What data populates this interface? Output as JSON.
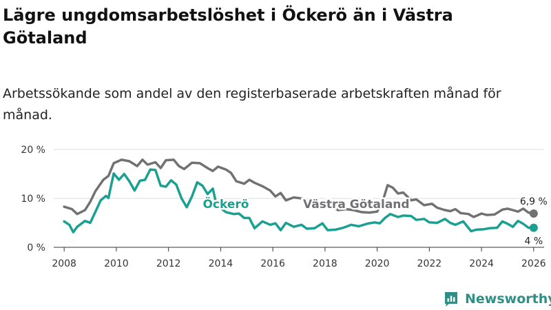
{
  "title": "Lägre ungdomsarbetslöshet i Öckerö än i Västra Götaland",
  "subtitle": "Arbetssökande som andel av den registerbaserade arbetskraften månad för månad.",
  "brand": "Newsworthy",
  "colors": {
    "vg": "#717174",
    "ockero": "#1aa091",
    "grid": "#dddddd",
    "brand": "#2f8f86"
  },
  "chart_data": {
    "type": "line",
    "title": "Lägre ungdomsarbetslöshet i Öckerö än i Västra Götaland",
    "xlim": [
      2007.6,
      2026.4
    ],
    "ylim": [
      0,
      20
    ],
    "yticks": [
      0,
      10,
      20
    ],
    "ytick_labels": [
      "0 %",
      "10 %",
      "20 %"
    ],
    "xticks": [
      2008,
      2010,
      2012,
      2014,
      2016,
      2018,
      2020,
      2022,
      2024,
      2026
    ],
    "xtick_labels": [
      "2008",
      "2010",
      "2012",
      "2014",
      "2016",
      "2018",
      "2020",
      "2022",
      "2024",
      "2026"
    ],
    "series": [
      {
        "name": "Västra Götaland",
        "color": "#717174",
        "end_label": "6,9 %",
        "points": [
          [
            2008.0,
            8.3
          ],
          [
            2008.3,
            7.8
          ],
          [
            2008.5,
            6.8
          ],
          [
            2008.8,
            7.6
          ],
          [
            2009.0,
            9.3
          ],
          [
            2009.2,
            11.5
          ],
          [
            2009.5,
            13.8
          ],
          [
            2009.7,
            14.6
          ],
          [
            2009.9,
            17.2
          ],
          [
            2010.2,
            17.9
          ],
          [
            2010.5,
            17.6
          ],
          [
            2010.8,
            16.6
          ],
          [
            2011.0,
            17.9
          ],
          [
            2011.2,
            16.9
          ],
          [
            2011.5,
            17.4
          ],
          [
            2011.7,
            16.2
          ],
          [
            2011.9,
            17.8
          ],
          [
            2012.2,
            17.9
          ],
          [
            2012.4,
            16.6
          ],
          [
            2012.6,
            16.0
          ],
          [
            2012.9,
            17.3
          ],
          [
            2013.2,
            17.2
          ],
          [
            2013.5,
            16.2
          ],
          [
            2013.7,
            15.6
          ],
          [
            2013.9,
            16.5
          ],
          [
            2014.2,
            15.9
          ],
          [
            2014.4,
            15.2
          ],
          [
            2014.6,
            13.5
          ],
          [
            2014.9,
            13.0
          ],
          [
            2015.1,
            13.8
          ],
          [
            2015.3,
            13.2
          ],
          [
            2015.6,
            12.5
          ],
          [
            2015.9,
            11.6
          ],
          [
            2016.1,
            10.4
          ],
          [
            2016.3,
            11.1
          ],
          [
            2016.5,
            9.6
          ],
          [
            2016.8,
            10.2
          ],
          [
            2017.1,
            10.0
          ],
          [
            2017.3,
            9.5
          ],
          [
            2017.6,
            8.0
          ],
          [
            2017.9,
            8.6
          ],
          [
            2018.2,
            8.5
          ],
          [
            2018.5,
            7.6
          ],
          [
            2018.8,
            7.8
          ],
          [
            2019.1,
            7.6
          ],
          [
            2019.4,
            7.2
          ],
          [
            2019.7,
            7.1
          ],
          [
            2020.0,
            7.3
          ],
          [
            2020.2,
            9.2
          ],
          [
            2020.4,
            12.7
          ],
          [
            2020.6,
            12.2
          ],
          [
            2020.8,
            11.0
          ],
          [
            2021.0,
            11.2
          ],
          [
            2021.3,
            9.6
          ],
          [
            2021.5,
            9.8
          ],
          [
            2021.8,
            8.6
          ],
          [
            2022.1,
            8.9
          ],
          [
            2022.3,
            8.1
          ],
          [
            2022.6,
            7.6
          ],
          [
            2022.8,
            7.4
          ],
          [
            2023.0,
            7.8
          ],
          [
            2023.2,
            7.0
          ],
          [
            2023.5,
            6.8
          ],
          [
            2023.7,
            6.2
          ],
          [
            2024.0,
            6.9
          ],
          [
            2024.2,
            6.6
          ],
          [
            2024.5,
            6.7
          ],
          [
            2024.8,
            7.7
          ],
          [
            2025.0,
            7.9
          ],
          [
            2025.2,
            7.6
          ],
          [
            2025.4,
            7.3
          ],
          [
            2025.6,
            7.9
          ],
          [
            2025.8,
            7.1
          ],
          [
            2026.0,
            6.9
          ]
        ]
      },
      {
        "name": "Öckerö",
        "color": "#1aa091",
        "end_label": "4 %",
        "points": [
          [
            2008.0,
            5.3
          ],
          [
            2008.2,
            4.6
          ],
          [
            2008.35,
            3.1
          ],
          [
            2008.5,
            4.2
          ],
          [
            2008.8,
            5.4
          ],
          [
            2009.0,
            5.0
          ],
          [
            2009.2,
            7.3
          ],
          [
            2009.4,
            9.6
          ],
          [
            2009.6,
            10.5
          ],
          [
            2009.7,
            10.1
          ],
          [
            2009.9,
            15.1
          ],
          [
            2010.1,
            13.8
          ],
          [
            2010.3,
            15.0
          ],
          [
            2010.5,
            13.5
          ],
          [
            2010.7,
            11.6
          ],
          [
            2010.9,
            13.6
          ],
          [
            2011.1,
            13.8
          ],
          [
            2011.3,
            15.9
          ],
          [
            2011.5,
            15.8
          ],
          [
            2011.7,
            12.6
          ],
          [
            2011.9,
            12.4
          ],
          [
            2012.1,
            13.7
          ],
          [
            2012.3,
            12.8
          ],
          [
            2012.5,
            10.0
          ],
          [
            2012.7,
            8.2
          ],
          [
            2012.9,
            10.4
          ],
          [
            2013.1,
            13.3
          ],
          [
            2013.3,
            12.6
          ],
          [
            2013.5,
            10.9
          ],
          [
            2013.7,
            12.0
          ],
          [
            2013.85,
            8.4
          ],
          [
            2014.0,
            8.0
          ],
          [
            2014.2,
            7.2
          ],
          [
            2014.5,
            6.8
          ],
          [
            2014.7,
            6.9
          ],
          [
            2014.9,
            6.0
          ],
          [
            2015.1,
            6.0
          ],
          [
            2015.3,
            3.9
          ],
          [
            2015.6,
            5.3
          ],
          [
            2015.9,
            4.6
          ],
          [
            2016.1,
            4.9
          ],
          [
            2016.3,
            3.5
          ],
          [
            2016.5,
            5.0
          ],
          [
            2016.8,
            4.2
          ],
          [
            2017.1,
            4.6
          ],
          [
            2017.3,
            3.8
          ],
          [
            2017.6,
            3.9
          ],
          [
            2017.9,
            4.9
          ],
          [
            2018.1,
            3.5
          ],
          [
            2018.4,
            3.6
          ],
          [
            2018.7,
            4.0
          ],
          [
            2019.0,
            4.6
          ],
          [
            2019.3,
            4.3
          ],
          [
            2019.6,
            4.8
          ],
          [
            2019.9,
            5.1
          ],
          [
            2020.1,
            4.9
          ],
          [
            2020.3,
            6.0
          ],
          [
            2020.5,
            6.8
          ],
          [
            2020.8,
            6.2
          ],
          [
            2021.0,
            6.5
          ],
          [
            2021.3,
            6.4
          ],
          [
            2021.5,
            5.6
          ],
          [
            2021.8,
            5.8
          ],
          [
            2022.0,
            5.1
          ],
          [
            2022.3,
            5.0
          ],
          [
            2022.6,
            5.8
          ],
          [
            2022.8,
            5.0
          ],
          [
            2023.0,
            4.6
          ],
          [
            2023.3,
            5.3
          ],
          [
            2023.6,
            3.3
          ],
          [
            2023.8,
            3.6
          ],
          [
            2024.1,
            3.7
          ],
          [
            2024.3,
            3.9
          ],
          [
            2024.6,
            4.0
          ],
          [
            2024.8,
            5.3
          ],
          [
            2025.0,
            4.8
          ],
          [
            2025.2,
            4.2
          ],
          [
            2025.4,
            5.4
          ],
          [
            2025.6,
            4.8
          ],
          [
            2025.8,
            4.0
          ],
          [
            2026.0,
            4.0
          ]
        ]
      }
    ],
    "annotations": [
      {
        "text": "Öckerö",
        "series": "Öckerö",
        "x": 2014.2,
        "y": 8.9
      },
      {
        "text": "Västra Götaland",
        "series": "Västra Götaland",
        "x": 2019.2,
        "y": 8.9
      }
    ]
  }
}
